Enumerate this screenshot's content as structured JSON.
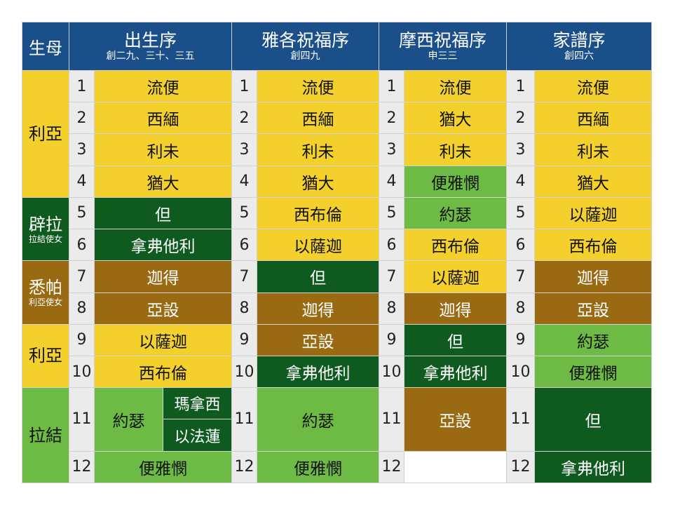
{
  "header": {
    "mother": "生母",
    "cols": [
      {
        "title": "出生序",
        "sub": "創二九、三十、三五"
      },
      {
        "title": "雅各祝福序",
        "sub": "創四九"
      },
      {
        "title": "摩西祝福序",
        "sub": "申三三"
      },
      {
        "title": "家譜序",
        "sub": "創四六"
      }
    ]
  },
  "mothers": [
    {
      "name": "利亞",
      "sub": ""
    },
    {
      "name": "辟拉",
      "sub": "拉結使女"
    },
    {
      "name": "悉帕",
      "sub": "利亞使女"
    },
    {
      "name": "利亞",
      "sub": ""
    },
    {
      "name": "拉結",
      "sub": ""
    }
  ],
  "numbers": [
    "1",
    "2",
    "3",
    "4",
    "5",
    "6",
    "7",
    "8",
    "9",
    "10",
    "11",
    "12"
  ],
  "birth": [
    "流便",
    "西緬",
    "利未",
    "猶大",
    "但",
    "拿弗他利",
    "迦得",
    "亞設",
    "以薩迦",
    "西布倫",
    "約瑟",
    "便雅憫"
  ],
  "birth_sons_of_joseph": [
    "瑪拿西",
    "以法蓮"
  ],
  "jacob": [
    "流便",
    "西緬",
    "利未",
    "猶大",
    "西布倫",
    "以薩迦",
    "但",
    "迦得",
    "亞設",
    "拿弗他利",
    "約瑟",
    "便雅憫"
  ],
  "moses": [
    "流便",
    "猶大",
    "利未",
    "便雅憫",
    "約瑟",
    "西布倫",
    "以薩迦",
    "迦得",
    "但",
    "拿弗他利",
    "亞設",
    ""
  ],
  "genealogy": [
    "流便",
    "西緬",
    "利未",
    "猶大",
    "以薩迦",
    "西布倫",
    "迦得",
    "亞設",
    "約瑟",
    "便雅憫",
    "但",
    "拿弗他利"
  ],
  "colors": {
    "header": "#1b4f8a",
    "leah": "#f3d02b",
    "bilhah": "#0e5a1f",
    "zilpah": "#9a6a12",
    "rachel": "#6dbb45",
    "number": "#ebebeb"
  }
}
